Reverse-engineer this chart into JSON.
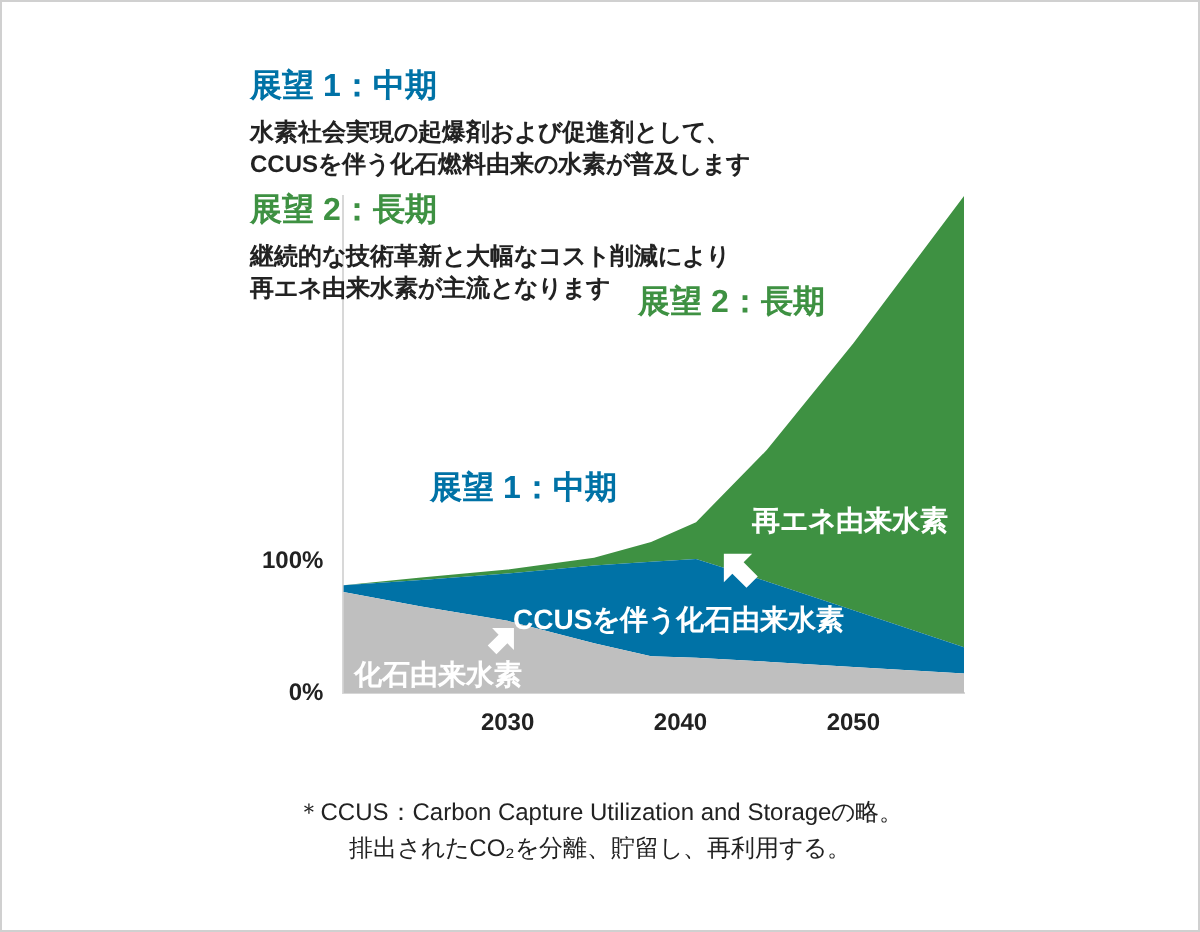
{
  "chart_data": {
    "type": "area",
    "stacked": true,
    "x": [
      2020.5,
      2025,
      2030,
      2035,
      2038.3,
      2040.9,
      2045,
      2050,
      2056.4
    ],
    "xlim": [
      2020.5,
      2056.4
    ],
    "xticks": [
      2030,
      2040,
      2050
    ],
    "ylim": [
      0,
      378
    ],
    "yticks": [
      {
        "value": 0,
        "label": "0%"
      },
      {
        "value": 100,
        "label": "100%"
      }
    ],
    "series": [
      {
        "name": "化石由来水素",
        "color": "#bfbfbf",
        "values": [
          77,
          66,
          55,
          38,
          28,
          27,
          24,
          20,
          15
        ]
      },
      {
        "name": "CCUSを伴う化石由来水素",
        "color": "#0072a6",
        "values": [
          5,
          20,
          36,
          59,
          72,
          75,
          61,
          43,
          20
        ]
      },
      {
        "name": "再エネ由来水素",
        "color": "#3e9142",
        "values": [
          0,
          2,
          3,
          6,
          15,
          28,
          100,
          203,
          343
        ]
      }
    ],
    "annotations": [
      "展望 1：中期",
      "水素社会実現の起爆剤および促進剤として、",
      "CCUSを伴う化石燃料由来の水素が普及します",
      "展望 2：長期",
      "継続的な技術革新と大幅なコスト削減により",
      "再エネ由来水素が主流となります",
      "展望 1：中期",
      "展望 2：長期",
      "＊CCUS：Carbon Capture Utilization and Storageの略。",
      "排出されたCO₂を分離、貯留し、再利用する。"
    ],
    "legend": false,
    "grid": false
  }
}
